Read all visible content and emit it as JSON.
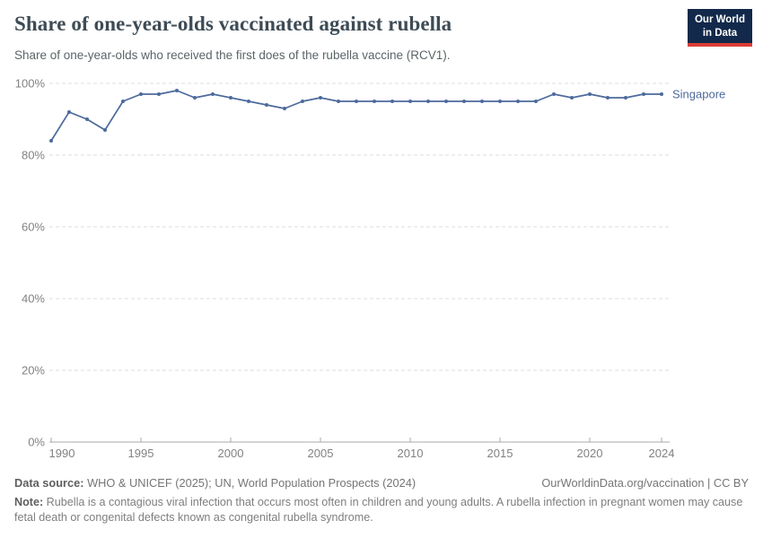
{
  "header": {
    "title": "Share of one-year-olds vaccinated against rubella",
    "subtitle": "Share of one-year-olds who received the first does of the rubella vaccine (RCV1)."
  },
  "logo": {
    "line1": "Our World",
    "line2": "in Data",
    "bg_color": "#12294b",
    "bar_color": "#dc3e36"
  },
  "chart_data": {
    "type": "line",
    "title": "Share of one-year-olds vaccinated against rubella",
    "xlabel": "",
    "ylabel": "",
    "xlim": [
      1990,
      2024
    ],
    "ylim": [
      0,
      100
    ],
    "grid": "horizontal-dashed",
    "legend_position": "end-of-line-label",
    "xticks": [
      1990,
      1995,
      2000,
      2005,
      2010,
      2015,
      2020,
      2024
    ],
    "yticks": [
      0,
      20,
      40,
      60,
      80,
      100
    ],
    "ytick_labels": [
      "0%",
      "20%",
      "40%",
      "60%",
      "80%",
      "100%"
    ],
    "line_color": "#4C6A9C",
    "grid_color": "#dcdcdc",
    "axis_color": "#a9a9a9",
    "tick_label_color": "#828282",
    "x": [
      1990,
      1991,
      1992,
      1993,
      1994,
      1995,
      1996,
      1997,
      1998,
      1999,
      2000,
      2001,
      2002,
      2003,
      2004,
      2005,
      2006,
      2007,
      2008,
      2009,
      2010,
      2011,
      2012,
      2013,
      2014,
      2015,
      2016,
      2017,
      2018,
      2019,
      2020,
      2021,
      2022,
      2023,
      2024
    ],
    "series": [
      {
        "name": "Singapore",
        "color": "#4C6A9C",
        "values": [
          84,
          92,
          90,
          87,
          95,
          97,
          97,
          98,
          96,
          97,
          96,
          95,
          94,
          93,
          95,
          96,
          95,
          95,
          95,
          95,
          95,
          95,
          95,
          95,
          95,
          95,
          95,
          95,
          97,
          96,
          97,
          96,
          96,
          97,
          97
        ]
      }
    ]
  },
  "footer": {
    "datasource_label": "Data source:",
    "datasource_text": " WHO & UNICEF (2025); UN, World Population Prospects (2024)",
    "link": "OurWorldinData.org/vaccination | CC BY",
    "note_label": "Note:",
    "note_text": " Rubella is a contagious viral infection that occurs most often in children and young adults. A rubella infection in pregnant women may cause fetal death or congenital defects known as congenital rubella syndrome."
  }
}
